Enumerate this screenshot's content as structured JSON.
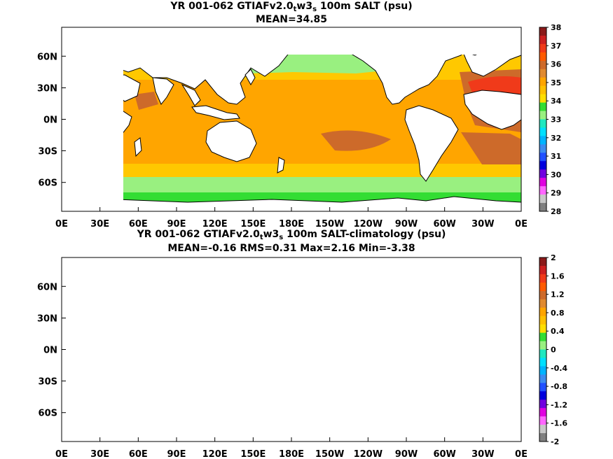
{
  "panels": [
    {
      "title": {
        "lead": "YR 001-062 GTIAFv2.0",
        "sub1": "t",
        "mid": "w3",
        "sub2": "s",
        "tail": " 100m SALT (psu)"
      },
      "stats": "MEAN=34.85",
      "x_ticks": [
        "0E",
        "30E",
        "60E",
        "90E",
        "120E",
        "150E",
        "180E",
        "150W",
        "120W",
        "90W",
        "60W",
        "30W",
        "0E"
      ],
      "y_ticks": [
        "60N",
        "30N",
        "0N",
        "30S",
        "60S"
      ],
      "colorbar": {
        "labels": [
          "38",
          "37",
          "36",
          "35",
          "34",
          "33",
          "32",
          "31",
          "30",
          "29",
          "28"
        ],
        "colors": [
          "#8b1a1a",
          "#cc2020",
          "#f03a1a",
          "#ff5a00",
          "#cd6a2a",
          "#e08a30",
          "#ffa500",
          "#ffc000",
          "#ffde00",
          "#33dd33",
          "#99f080",
          "#20e8c0",
          "#00e0ff",
          "#00b4ff",
          "#3c8cf0",
          "#2050ff",
          "#0000dd",
          "#7000e0",
          "#e000e0",
          "#ff66ff",
          "#c8c8c8",
          "#808080"
        ]
      },
      "fields": {
        "ocean": "#ffc800",
        "mid": "#ffa500",
        "high": "#cd6a2a",
        "peak": "#f03a1a",
        "fresh": "#99f080",
        "fresher": "#33dd33",
        "extreme": "#8b1a1a"
      }
    },
    {
      "title": {
        "lead": "YR 001-062 GTIAFv2.0",
        "sub1": "t",
        "mid": "w3",
        "sub2": "s",
        "tail": " 100m SALT-climatology (psu)"
      },
      "stats": "MEAN=-0.16   RMS=0.31   Max=2.16   Min=-3.38",
      "x_ticks": [
        "0E",
        "30E",
        "60E",
        "90E",
        "120E",
        "150E",
        "180E",
        "150W",
        "120W",
        "90W",
        "60W",
        "30W",
        "0E"
      ],
      "y_ticks": [
        "60N",
        "30N",
        "0N",
        "30S",
        "60S"
      ],
      "colorbar": {
        "labels": [
          "2",
          "1.6",
          "1.2",
          "0.8",
          "0.4",
          "0",
          "-0.4",
          "-0.8",
          "-1.2",
          "-1.6",
          "-2"
        ],
        "colors": [
          "#8b1a1a",
          "#cc2020",
          "#f03a1a",
          "#ff5a00",
          "#cd6a2a",
          "#e08a30",
          "#ffa500",
          "#ffc000",
          "#ffde00",
          "#33dd33",
          "#99f080",
          "#20e8c0",
          "#00e0ff",
          "#00b4ff",
          "#3c8cf0",
          "#2050ff",
          "#0000dd",
          "#7000e0",
          "#e000e0",
          "#ff66ff",
          "#c8c8c8",
          "#808080"
        ]
      },
      "fields": {
        "ocean": "#99f080",
        "mid": "#20e8c0",
        "high": "#00e0ff",
        "peak": "#ffde00",
        "fresh": "#00b4ff",
        "fresher": "#33dd33",
        "extreme": "#2050ff"
      }
    }
  ]
}
